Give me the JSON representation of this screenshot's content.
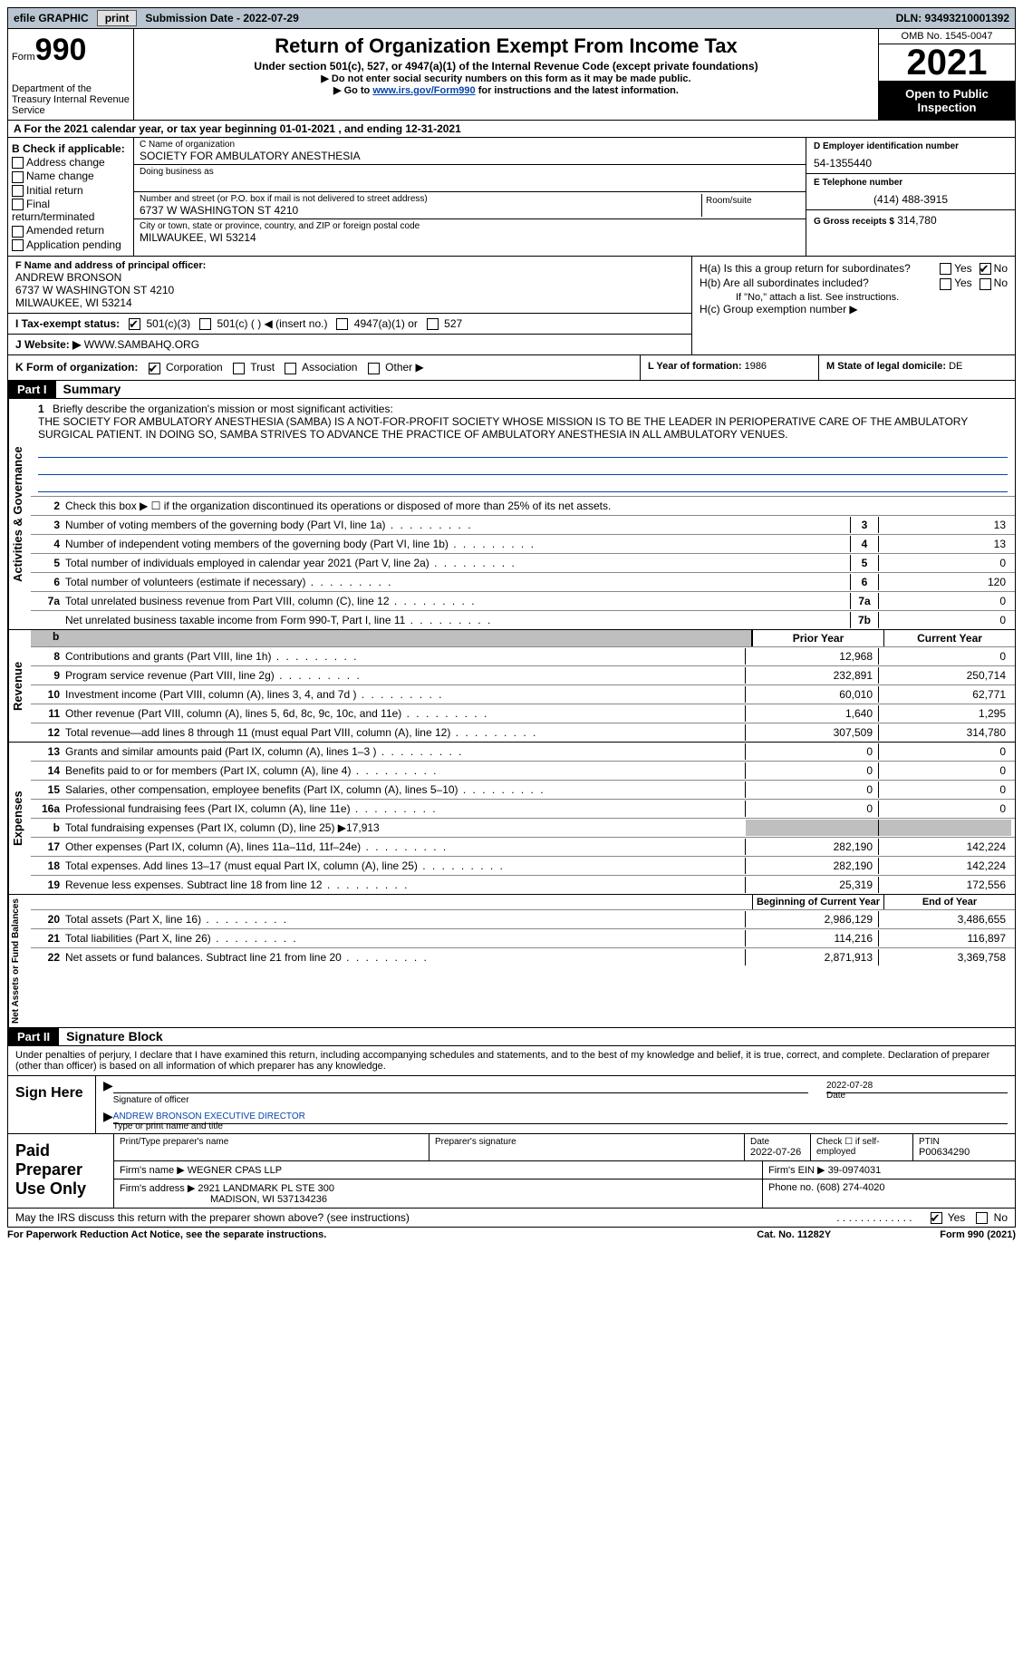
{
  "topbar": {
    "efile_label": "efile GRAPHIC",
    "print_btn": "print",
    "submission_label": "Submission Date - 2022-07-29",
    "dln_label": "DLN: 93493210001392"
  },
  "header": {
    "form_small": "Form",
    "form_big": "990",
    "dept": "Department of the Treasury Internal Revenue Service",
    "title": "Return of Organization Exempt From Income Tax",
    "subtitle": "Under section 501(c), 527, or 4947(a)(1) of the Internal Revenue Code (except private foundations)",
    "instr1": "▶ Do not enter social security numbers on this form as it may be made public.",
    "instr2_pre": "▶ Go to ",
    "instr2_link": "www.irs.gov/Form990",
    "instr2_post": " for instructions and the latest information.",
    "omb": "OMB No. 1545-0047",
    "year": "2021",
    "open_public": "Open to Public Inspection"
  },
  "row_a": "A For the 2021 calendar year, or tax year beginning 01-01-2021   , and ending 12-31-2021",
  "section_b": {
    "header": "B Check if applicable:",
    "opts": [
      "Address change",
      "Name change",
      "Initial return",
      "Final return/terminated",
      "Amended return",
      "Application pending"
    ]
  },
  "section_c": {
    "name_label": "C Name of organization",
    "name": "SOCIETY FOR AMBULATORY ANESTHESIA",
    "dba_label": "Doing business as",
    "addr_label": "Number and street (or P.O. box if mail is not delivered to street address)",
    "room_label": "Room/suite",
    "addr": "6737 W WASHINGTON ST 4210",
    "city_label": "City or town, state or province, country, and ZIP or foreign postal code",
    "city": "MILWAUKEE, WI  53214"
  },
  "section_d": {
    "ein_label": "D Employer identification number",
    "ein": "54-1355440",
    "tel_label": "E Telephone number",
    "tel": "(414) 488-3915",
    "gross_label": "G Gross receipts $",
    "gross": "314,780"
  },
  "section_f": {
    "label": "F  Name and address of principal officer:",
    "name": "ANDREW BRONSON",
    "addr1": "6737 W WASHINGTON ST 4210",
    "addr2": "MILWAUKEE, WI  53214"
  },
  "section_h": {
    "ha": "H(a)  Is this a group return for subordinates?",
    "hb": "H(b)  Are all subordinates included?",
    "hb_note": "If \"No,\" attach a list. See instructions.",
    "hc": "H(c)  Group exemption number ▶",
    "yes": "Yes",
    "no": "No"
  },
  "section_i": {
    "label": "I  Tax-exempt status:",
    "opt1": "501(c)(3)",
    "opt2": "501(c) (  ) ◀ (insert no.)",
    "opt3": "4947(a)(1) or",
    "opt4": "527"
  },
  "section_j": {
    "label": "J  Website: ▶",
    "val": "WWW.SAMBAHQ.ORG"
  },
  "row_k": {
    "label": "K Form of organization:",
    "opts": [
      "Corporation",
      "Trust",
      "Association",
      "Other ▶"
    ]
  },
  "row_l": {
    "label": "L Year of formation:",
    "val": "1986"
  },
  "row_m": {
    "label": "M State of legal domicile:",
    "val": "DE"
  },
  "part1": {
    "tag": "Part I",
    "title": "Summary",
    "vlabel_ag": "Activities & Governance",
    "vlabel_rev": "Revenue",
    "vlabel_exp": "Expenses",
    "vlabel_net": "Net Assets or Fund Balances",
    "line1_label": "Briefly describe the organization's mission or most significant activities:",
    "line1_text": "THE SOCIETY FOR AMBULATORY ANESTHESIA (SAMBA) IS A NOT-FOR-PROFIT SOCIETY WHOSE MISSION IS TO BE THE LEADER IN PERIOPERATIVE CARE OF THE AMBULATORY SURGICAL PATIENT. IN DOING SO, SAMBA STRIVES TO ADVANCE THE PRACTICE OF AMBULATORY ANESTHESIA IN ALL AMBULATORY VENUES.",
    "line2": "Check this box ▶ ☐  if the organization discontinued its operations or disposed of more than 25% of its net assets.",
    "lines_single": [
      {
        "n": "3",
        "d": "Number of voting members of the governing body (Part VI, line 1a)",
        "box": "3",
        "v": "13"
      },
      {
        "n": "4",
        "d": "Number of independent voting members of the governing body (Part VI, line 1b)",
        "box": "4",
        "v": "13"
      },
      {
        "n": "5",
        "d": "Total number of individuals employed in calendar year 2021 (Part V, line 2a)",
        "box": "5",
        "v": "0"
      },
      {
        "n": "6",
        "d": "Total number of volunteers (estimate if necessary)",
        "box": "6",
        "v": "120"
      },
      {
        "n": "7a",
        "d": "Total unrelated business revenue from Part VIII, column (C), line 12",
        "box": "7a",
        "v": "0"
      },
      {
        "n": "",
        "d": "Net unrelated business taxable income from Form 990-T, Part I, line 11",
        "box": "7b",
        "v": "0"
      }
    ],
    "hdr_prior": "Prior Year",
    "hdr_current": "Current Year",
    "revenue_lines": [
      {
        "n": "8",
        "d": "Contributions and grants (Part VIII, line 1h)",
        "p": "12,968",
        "c": "0"
      },
      {
        "n": "9",
        "d": "Program service revenue (Part VIII, line 2g)",
        "p": "232,891",
        "c": "250,714"
      },
      {
        "n": "10",
        "d": "Investment income (Part VIII, column (A), lines 3, 4, and 7d )",
        "p": "60,010",
        "c": "62,771"
      },
      {
        "n": "11",
        "d": "Other revenue (Part VIII, column (A), lines 5, 6d, 8c, 9c, 10c, and 11e)",
        "p": "1,640",
        "c": "1,295"
      },
      {
        "n": "12",
        "d": "Total revenue—add lines 8 through 11 (must equal Part VIII, column (A), line 12)",
        "p": "307,509",
        "c": "314,780"
      }
    ],
    "expense_lines": [
      {
        "n": "13",
        "d": "Grants and similar amounts paid (Part IX, column (A), lines 1–3 )",
        "p": "0",
        "c": "0"
      },
      {
        "n": "14",
        "d": "Benefits paid to or for members (Part IX, column (A), line 4)",
        "p": "0",
        "c": "0"
      },
      {
        "n": "15",
        "d": "Salaries, other compensation, employee benefits (Part IX, column (A), lines 5–10)",
        "p": "0",
        "c": "0"
      },
      {
        "n": "16a",
        "d": "Professional fundraising fees (Part IX, column (A), line 11e)",
        "p": "0",
        "c": "0"
      }
    ],
    "line16b": {
      "n": "b",
      "d": "Total fundraising expenses (Part IX, column (D), line 25) ▶17,913"
    },
    "expense_lines2": [
      {
        "n": "17",
        "d": "Other expenses (Part IX, column (A), lines 11a–11d, 11f–24e)",
        "p": "282,190",
        "c": "142,224"
      },
      {
        "n": "18",
        "d": "Total expenses. Add lines 13–17 (must equal Part IX, column (A), line 25)",
        "p": "282,190",
        "c": "142,224"
      },
      {
        "n": "19",
        "d": "Revenue less expenses. Subtract line 18 from line 12",
        "p": "25,319",
        "c": "172,556"
      }
    ],
    "hdr_begin": "Beginning of Current Year",
    "hdr_end": "End of Year",
    "net_lines": [
      {
        "n": "20",
        "d": "Total assets (Part X, line 16)",
        "p": "2,986,129",
        "c": "3,486,655"
      },
      {
        "n": "21",
        "d": "Total liabilities (Part X, line 26)",
        "p": "114,216",
        "c": "116,897"
      },
      {
        "n": "22",
        "d": "Net assets or fund balances. Subtract line 21 from line 20",
        "p": "2,871,913",
        "c": "3,369,758"
      }
    ]
  },
  "part2": {
    "tag": "Part II",
    "title": "Signature Block",
    "decl": "Under penalties of perjury, I declare that I have examined this return, including accompanying schedules and statements, and to the best of my knowledge and belief, it is true, correct, and complete. Declaration of preparer (other than officer) is based on all information of which preparer has any knowledge.",
    "sign_here": "Sign Here",
    "sig_date": "2022-07-28",
    "sig_officer_label": "Signature of officer",
    "date_label": "Date",
    "officer_name": "ANDREW BRONSON  EXECUTIVE DIRECTOR",
    "officer_label": "Type or print name and title",
    "paid_prep": "Paid Preparer Use Only",
    "prep_name_label": "Print/Type preparer's name",
    "prep_sig_label": "Preparer's signature",
    "prep_date_label": "Date",
    "prep_date": "2022-07-26",
    "check_if": "Check ☐ if self-employed",
    "ptin_label": "PTIN",
    "ptin": "P00634290",
    "firm_name_label": "Firm's name    ▶",
    "firm_name": "WEGNER CPAS LLP",
    "firm_ein_label": "Firm's EIN ▶",
    "firm_ein": "39-0974031",
    "firm_addr_label": "Firm's address ▶",
    "firm_addr": "2921 LANDMARK PL STE 300",
    "firm_city": "MADISON, WI  537134236",
    "phone_label": "Phone no.",
    "phone": "(608) 274-4020",
    "discuss": "May the IRS discuss this return with the preparer shown above? (see instructions)",
    "yes": "Yes",
    "no": "No"
  },
  "footer": {
    "left": "For Paperwork Reduction Act Notice, see the separate instructions.",
    "center": "Cat. No. 11282Y",
    "right": "Form 990 (2021)"
  }
}
